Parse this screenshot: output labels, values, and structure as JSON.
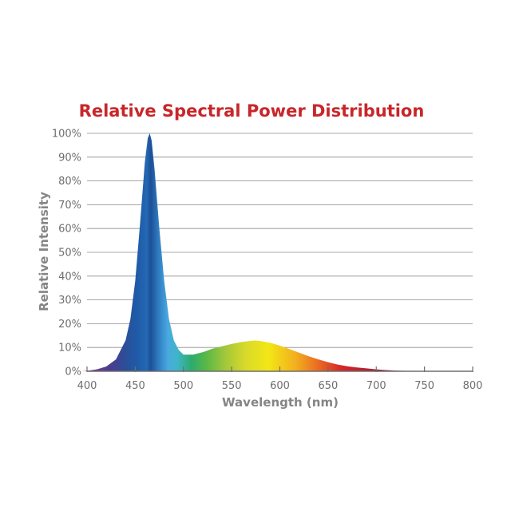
{
  "chart_data": {
    "type": "area",
    "title": "Relative Spectral Power Distribution",
    "xlabel": "Wavelength (nm)",
    "ylabel": "Relative Intensity",
    "xlim": [
      400,
      800
    ],
    "ylim": [
      0,
      100
    ],
    "x_ticks": [
      "400",
      "450",
      "500",
      "550",
      "600",
      "650",
      "700",
      "750",
      "800"
    ],
    "y_ticks": [
      "0%",
      "10%",
      "20%",
      "30%",
      "40%",
      "50%",
      "60%",
      "70%",
      "80%",
      "90%",
      "100%"
    ],
    "grid": true,
    "fill": "wavelength spectrum colors",
    "series": [
      {
        "x": [
          395,
          400,
          410,
          420,
          430,
          440,
          445,
          450,
          455,
          460,
          463,
          465,
          467,
          470,
          475,
          480,
          485,
          490,
          495,
          500,
          510,
          520,
          530,
          540,
          550,
          560,
          570,
          575,
          580,
          590,
          600,
          610,
          620,
          630,
          640,
          650,
          660,
          670,
          680,
          690,
          700,
          710,
          720,
          730,
          740,
          750
        ],
        "y": [
          0,
          0.2,
          0.8,
          2,
          5,
          13,
          22,
          38,
          62,
          88,
          98,
          100,
          97,
          85,
          60,
          38,
          22,
          13,
          9,
          7,
          7,
          8,
          9.5,
          10.5,
          11.5,
          12.3,
          12.8,
          12.9,
          12.7,
          12,
          10.8,
          9.3,
          7.8,
          6.3,
          5,
          3.8,
          2.8,
          2.1,
          1.6,
          1.2,
          0.8,
          0.5,
          0.3,
          0.15,
          0.05,
          0
        ]
      }
    ]
  }
}
